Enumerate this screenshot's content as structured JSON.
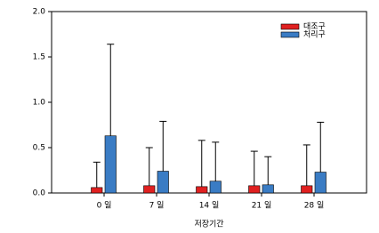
{
  "chart_data": {
    "type": "bar",
    "x_label": "저장기간",
    "categories": [
      "0 일",
      "7 일",
      "14 일",
      "21 일",
      "28 일"
    ],
    "series": [
      {
        "name": "대조구",
        "color": "#e02020",
        "values": [
          0.06,
          0.08,
          0.07,
          0.08,
          0.08
        ],
        "errors": [
          0.28,
          0.42,
          0.51,
          0.38,
          0.45
        ]
      },
      {
        "name": "처리구",
        "color": "#3a7cc4",
        "values": [
          0.63,
          0.24,
          0.13,
          0.09,
          0.23
        ],
        "errors": [
          1.01,
          0.55,
          0.43,
          0.31,
          0.55
        ]
      }
    ],
    "ylim": [
      0,
      2.0
    ],
    "yticks": [
      {
        "value": 0,
        "label": "0.0"
      },
      {
        "value": 0.5,
        "label": "0.5"
      },
      {
        "value": 1.0,
        "label": "1.0"
      },
      {
        "value": 1.5,
        "label": "1.5"
      },
      {
        "value": 2.0,
        "label": "2.0"
      }
    ],
    "legend": "upper right"
  }
}
